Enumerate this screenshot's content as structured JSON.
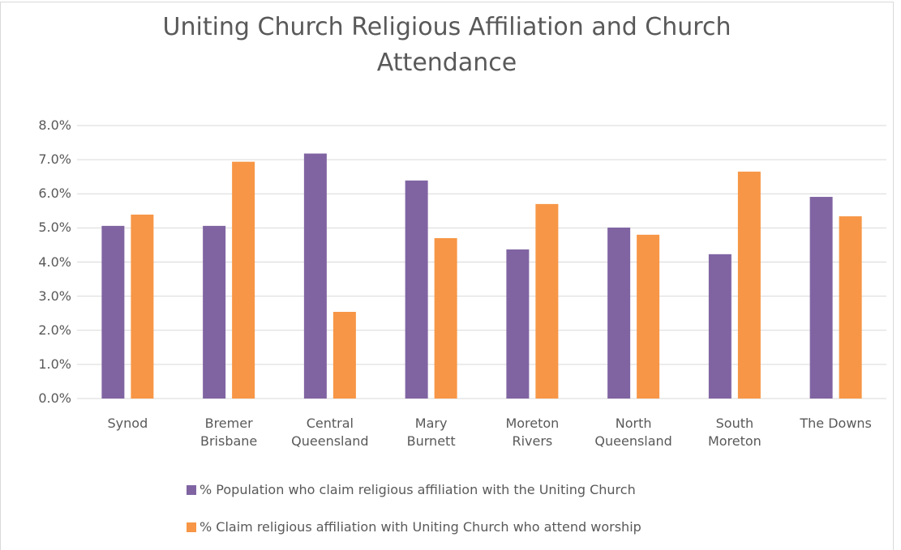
{
  "chart_data": {
    "type": "bar",
    "title": "Uniting Church Religious Affiliation and Church Attendance",
    "categories": [
      "Synod",
      "Bremer\nBrisbane",
      "Central\nQueensland",
      "Mary\nBurnett",
      "Moreton\nRivers",
      "North\nQueensland",
      "South\nMoreton",
      "The Downs"
    ],
    "series": [
      {
        "name": "% Population who claim religious affiliation with the Uniting Church",
        "color": "#8064a2",
        "values": [
          5.06,
          5.06,
          7.18,
          6.39,
          4.37,
          5.01,
          4.23,
          5.91
        ]
      },
      {
        "name": "% Claim religious affiliation with Uniting Church who attend worship",
        "color": "#f79646",
        "values": [
          5.39,
          6.94,
          2.54,
          4.7,
          5.7,
          4.8,
          6.65,
          5.34
        ]
      }
    ],
    "ylim": [
      0,
      8
    ],
    "yticks": [
      {
        "value": 0,
        "label": "0.0%"
      },
      {
        "value": 1,
        "label": "1.0%"
      },
      {
        "value": 2,
        "label": "2.0%"
      },
      {
        "value": 3,
        "label": "3.0%"
      },
      {
        "value": 4,
        "label": "4.0%"
      },
      {
        "value": 5,
        "label": "5.0%"
      },
      {
        "value": 6,
        "label": "6.0%"
      },
      {
        "value": 7,
        "label": "7.0%"
      },
      {
        "value": 8,
        "label": "8.0%"
      }
    ],
    "grid": true,
    "legend": "bottom"
  }
}
